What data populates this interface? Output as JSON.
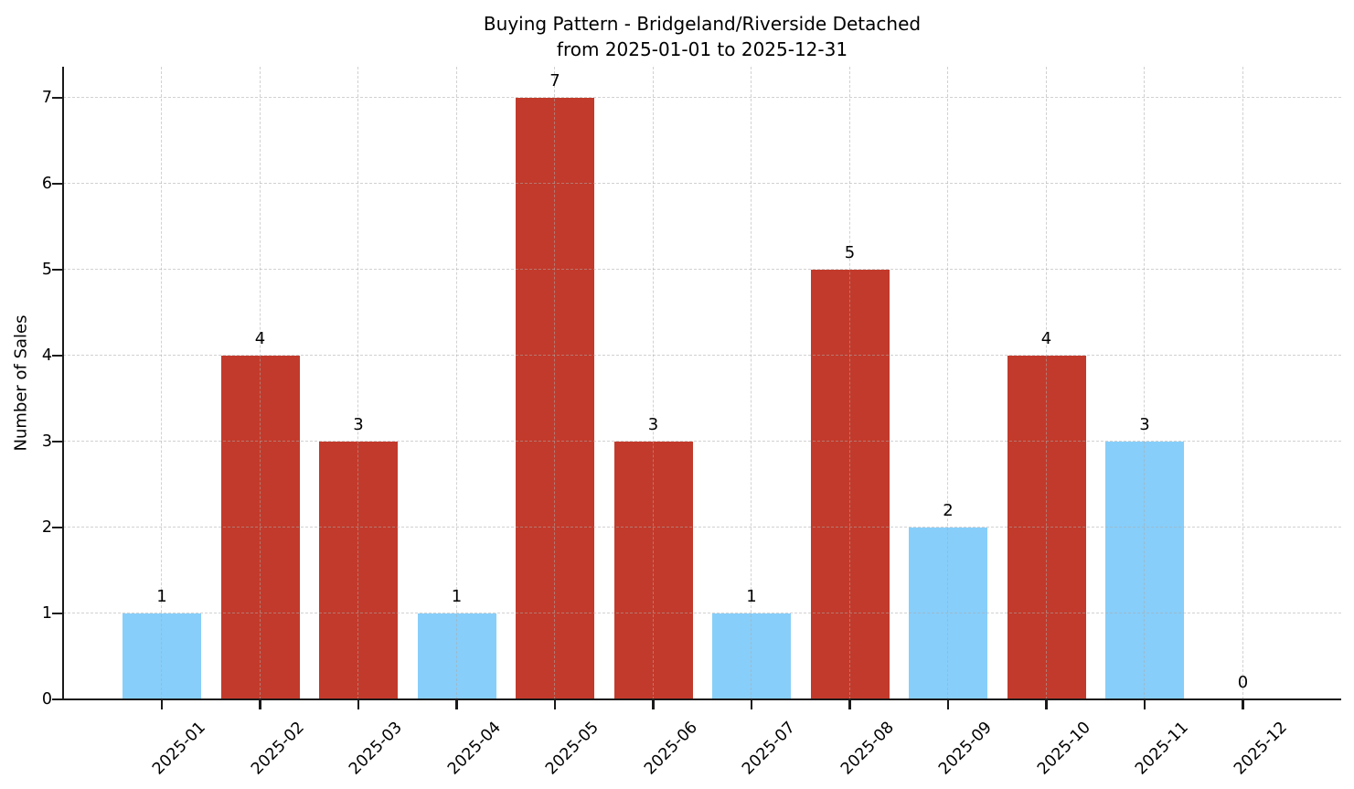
{
  "chart_data": {
    "type": "bar",
    "title_line1": "Buying Pattern - Bridgeland/Riverside Detached",
    "title_line2": "from 2025-01-01 to 2025-12-31",
    "xlabel": "",
    "ylabel": "Number of Sales",
    "categories": [
      "2025-01",
      "2025-02",
      "2025-03",
      "2025-04",
      "2025-05",
      "2025-06",
      "2025-07",
      "2025-08",
      "2025-09",
      "2025-10",
      "2025-11",
      "2025-12"
    ],
    "values": [
      1,
      4,
      3,
      1,
      7,
      3,
      1,
      5,
      2,
      4,
      3,
      0
    ],
    "bar_labels": [
      "1",
      "4",
      "3",
      "1",
      "7",
      "3",
      "1",
      "5",
      "2",
      "4",
      "3",
      "0"
    ],
    "bar_colors": [
      "#87cefa",
      "#c23a2b",
      "#c23a2b",
      "#87cefa",
      "#c23a2b",
      "#c23a2b",
      "#87cefa",
      "#c23a2b",
      "#87cefa",
      "#c23a2b",
      "#87cefa",
      null
    ],
    "yticks": [
      "0",
      "1",
      "2",
      "3",
      "4",
      "5",
      "6",
      "7"
    ],
    "ylim": [
      0,
      7.36
    ],
    "grid": {
      "visible": true,
      "style": "dashed",
      "over_bars": true
    },
    "legend": "none",
    "colors": {
      "blue_bar": "#87cefa",
      "red_bar": "#c23a2b",
      "grid": "#d4d4d4",
      "axis": "#1a1a1a",
      "text": "#000000",
      "background": "#ffffff"
    }
  }
}
